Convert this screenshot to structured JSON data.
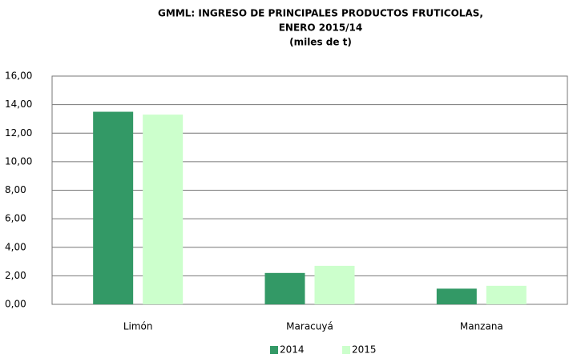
{
  "chart_data": {
    "type": "bar",
    "title_lines": [
      "GMML: INGRESO DE PRINCIPALES PRODUCTOS FRUTICOLAS,",
      "ENERO 2015/14",
      "(miles de t)"
    ],
    "categories": [
      "Limón",
      "Maracuyá",
      "Manzana"
    ],
    "series": [
      {
        "name": "2014",
        "color": "#339966",
        "values": [
          13.5,
          2.2,
          1.1
        ]
      },
      {
        "name": "2015",
        "color": "#ccffcc",
        "values": [
          13.3,
          2.7,
          1.3
        ]
      }
    ],
    "ylim": [
      0,
      16
    ],
    "yticks": [
      {
        "value": 0,
        "label": "0,00"
      },
      {
        "value": 2,
        "label": "2,00"
      },
      {
        "value": 4,
        "label": "4,00"
      },
      {
        "value": 6,
        "label": "6,00"
      },
      {
        "value": 8,
        "label": "8,00"
      },
      {
        "value": 10,
        "label": "10,00"
      },
      {
        "value": 12,
        "label": "12,00"
      },
      {
        "value": 14,
        "label": "14,00"
      },
      {
        "value": 16,
        "label": "16,00"
      }
    ],
    "grid": true,
    "legend": "bottom"
  }
}
